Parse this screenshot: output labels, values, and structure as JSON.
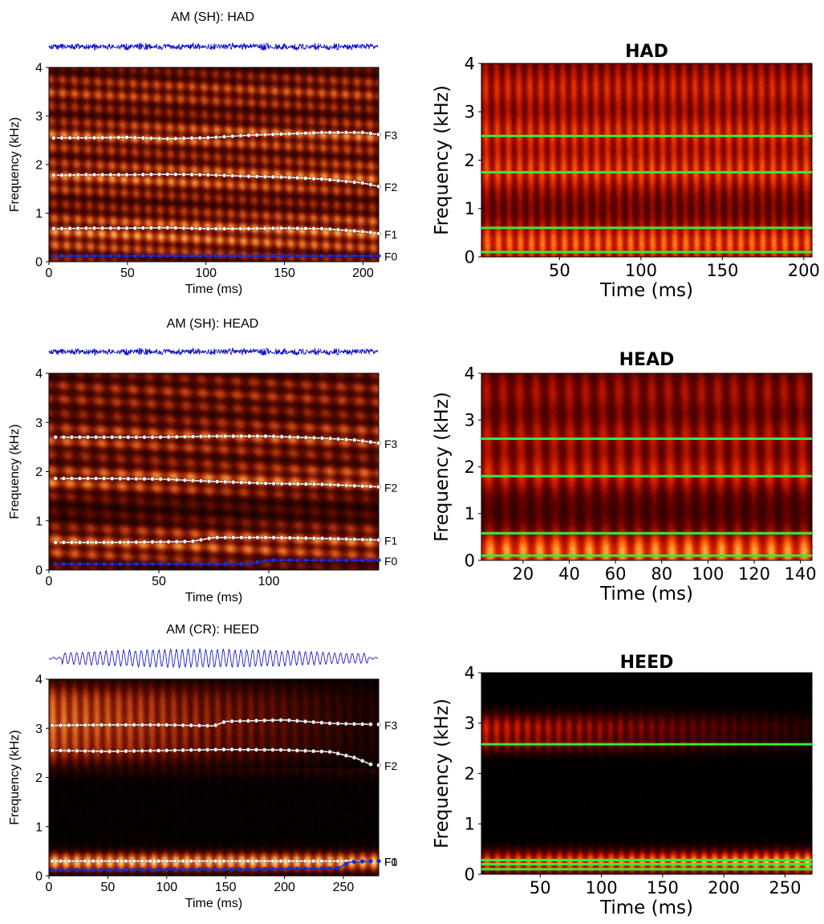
{
  "figure": {
    "colors": {
      "waveform": "#0000cc",
      "formant_track": "#ffffff",
      "f0_track": "#1a2bd6",
      "estimate_line": "#33ee33",
      "colormap": [
        "#000000",
        "#5a0a00",
        "#b83a10",
        "#e88a30",
        "#ffe6a0"
      ],
      "colormap_right": [
        "#000000",
        "#600000",
        "#cc1a00",
        "#ff6a10",
        "#ffe070"
      ]
    }
  },
  "chart_data": [
    {
      "id": "left-had",
      "type": "heatmap",
      "title": "AM (SH):   HAD",
      "xlabel": "Time (ms)",
      "ylabel": "Frequency (kHz)",
      "xlim": [
        0,
        210
      ],
      "ylim": [
        0,
        4
      ],
      "xticks": [
        "0",
        "50",
        "100",
        "150",
        "200"
      ],
      "yticks": [
        "0",
        "1",
        "2",
        "3",
        "4"
      ],
      "waveform": true,
      "tracks": [
        {
          "name": "F3",
          "x": [
            5,
            25,
            50,
            75,
            100,
            125,
            150,
            175,
            200,
            210
          ],
          "y": [
            2.55,
            2.55,
            2.56,
            2.53,
            2.55,
            2.6,
            2.63,
            2.66,
            2.66,
            2.62
          ]
        },
        {
          "name": "F2",
          "x": [
            5,
            25,
            50,
            75,
            100,
            125,
            150,
            175,
            200,
            210
          ],
          "y": [
            1.78,
            1.79,
            1.79,
            1.8,
            1.79,
            1.76,
            1.74,
            1.7,
            1.62,
            1.55
          ]
        },
        {
          "name": "F1",
          "x": [
            5,
            25,
            50,
            75,
            100,
            125,
            150,
            175,
            200,
            210
          ],
          "y": [
            0.68,
            0.69,
            0.69,
            0.7,
            0.68,
            0.68,
            0.69,
            0.68,
            0.62,
            0.58
          ]
        },
        {
          "name": "F0",
          "x": [
            5,
            50,
            100,
            150,
            210
          ],
          "y": [
            0.12,
            0.12,
            0.12,
            0.12,
            0.12
          ]
        }
      ]
    },
    {
      "id": "right-had",
      "type": "heatmap",
      "title": "HAD",
      "xlabel": "Time (ms)",
      "ylabel": "Frequency (kHz)",
      "xlim": [
        2,
        205
      ],
      "ylim": [
        0,
        4
      ],
      "xticks": [
        "50",
        "100",
        "150",
        "200"
      ],
      "yticks": [
        "0",
        "1",
        "2",
        "3",
        "4"
      ],
      "estimates_khz": [
        2.5,
        1.75,
        0.6,
        0.1
      ]
    },
    {
      "id": "left-head",
      "type": "heatmap",
      "title": "AM (SH):   HEAD",
      "xlabel": "Time (ms)",
      "ylabel": "Frequency (kHz)",
      "xlim": [
        0,
        150
      ],
      "ylim": [
        0,
        4
      ],
      "xticks": [
        "0",
        "50",
        "100"
      ],
      "yticks": [
        "0",
        "1",
        "2",
        "3",
        "4"
      ],
      "waveform": true,
      "tracks": [
        {
          "name": "F3",
          "x": [
            5,
            25,
            50,
            75,
            100,
            125,
            140,
            150
          ],
          "y": [
            2.7,
            2.7,
            2.7,
            2.72,
            2.72,
            2.68,
            2.64,
            2.58
          ]
        },
        {
          "name": "F2",
          "x": [
            5,
            25,
            50,
            75,
            100,
            125,
            150
          ],
          "y": [
            1.86,
            1.86,
            1.85,
            1.8,
            1.76,
            1.74,
            1.69
          ]
        },
        {
          "name": "F1",
          "x": [
            5,
            25,
            50,
            65,
            75,
            100,
            125,
            150
          ],
          "y": [
            0.56,
            0.56,
            0.57,
            0.58,
            0.66,
            0.66,
            0.64,
            0.61
          ]
        },
        {
          "name": "F0",
          "x": [
            5,
            50,
            90,
            100,
            125,
            150
          ],
          "y": [
            0.12,
            0.12,
            0.12,
            0.2,
            0.2,
            0.2
          ]
        }
      ]
    },
    {
      "id": "right-head",
      "type": "heatmap",
      "title": "HEAD",
      "xlabel": "Time (ms)",
      "ylabel": "Frequency (kHz)",
      "xlim": [
        2,
        145
      ],
      "ylim": [
        0,
        4
      ],
      "xticks": [
        "20",
        "40",
        "60",
        "80",
        "100",
        "120",
        "140"
      ],
      "yticks": [
        "0",
        "1",
        "2",
        "3",
        "4"
      ],
      "estimates_khz": [
        2.6,
        1.8,
        0.58,
        0.1
      ]
    },
    {
      "id": "left-heed",
      "type": "heatmap",
      "title": "AM (CR):   HEED",
      "xlabel": "Time (ms)",
      "ylabel": "Frequency (kHz)",
      "xlim": [
        0,
        280
      ],
      "ylim": [
        0,
        4
      ],
      "xticks": [
        "0",
        "50",
        "100",
        "150",
        "200",
        "250"
      ],
      "yticks": [
        "0",
        "1",
        "2",
        "3",
        "4"
      ],
      "waveform": true,
      "tracks": [
        {
          "name": "F3",
          "x": [
            5,
            50,
            100,
            140,
            150,
            200,
            240,
            275
          ],
          "y": [
            3.06,
            3.07,
            3.07,
            3.05,
            3.14,
            3.17,
            3.1,
            3.08
          ]
        },
        {
          "name": "F2",
          "x": [
            5,
            50,
            100,
            150,
            200,
            240,
            260,
            275
          ],
          "y": [
            2.55,
            2.53,
            2.55,
            2.57,
            2.56,
            2.52,
            2.4,
            2.25
          ]
        },
        {
          "name": "F1",
          "x": [
            5,
            50,
            100,
            150,
            200,
            250,
            275
          ],
          "y": [
            0.3,
            0.3,
            0.3,
            0.3,
            0.3,
            0.3,
            0.3
          ]
        },
        {
          "name": "F0",
          "x": [
            5,
            50,
            100,
            150,
            200,
            245,
            255,
            275
          ],
          "y": [
            0.12,
            0.12,
            0.13,
            0.13,
            0.14,
            0.15,
            0.28,
            0.3
          ]
        }
      ]
    },
    {
      "id": "right-heed",
      "type": "heatmap",
      "title": "HEED",
      "xlabel": "Time (ms)",
      "ylabel": "Frequency (kHz)",
      "xlim": [
        2,
        272
      ],
      "ylim": [
        0,
        4
      ],
      "xticks": [
        "50",
        "100",
        "150",
        "200",
        "250"
      ],
      "yticks": [
        "0",
        "1",
        "2",
        "3",
        "4"
      ],
      "estimates_khz": [
        2.58,
        0.28,
        0.2,
        0.1
      ]
    }
  ]
}
